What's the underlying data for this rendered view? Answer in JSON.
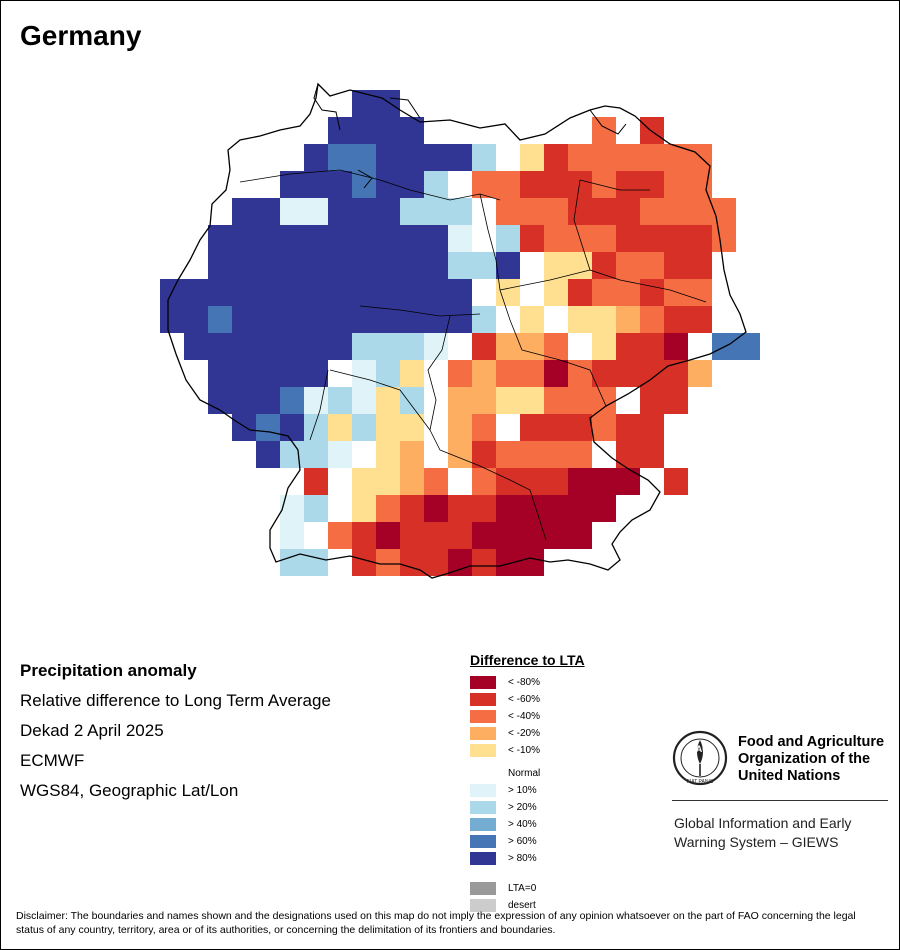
{
  "title": "Germany",
  "info": {
    "heading": "Precipitation anomaly",
    "line1": "Relative difference to Long Term Average",
    "line2": "Dekad 2 April 2025",
    "line3": "ECMWF",
    "line4": "WGS84, Geographic Lat/Lon"
  },
  "legend": {
    "title": "Difference to LTA",
    "items": [
      {
        "label": "< -80%",
        "color": "#a50026"
      },
      {
        "label": "< -60%",
        "color": "#d73027"
      },
      {
        "label": "< -40%",
        "color": "#f46d43"
      },
      {
        "label": "< -20%",
        "color": "#fdae61"
      },
      {
        "label": "< -10%",
        "color": "#fee090"
      },
      {
        "label": "Normal",
        "color": "#ffffff"
      },
      {
        "label": "> 10%",
        "color": "#e0f3f8"
      },
      {
        "label": "> 20%",
        "color": "#abd9e9"
      },
      {
        "label": "> 40%",
        "color": "#74add1"
      },
      {
        "label": "> 60%",
        "color": "#4575b4"
      },
      {
        "label": "> 80%",
        "color": "#313695"
      }
    ],
    "extra": [
      {
        "label": "LTA=0",
        "color": "#999999"
      },
      {
        "label": "desert",
        "color": "#cccccc"
      }
    ]
  },
  "fao": {
    "name_line1": "Food and Agriculture",
    "name_line2": "Organization of the",
    "name_line3": "United Nations",
    "logo_text": "FAO",
    "logo_motto": "FIAT PANIS",
    "system_line1": "Global Information and Early",
    "system_line2": "Warning System – GIEWS"
  },
  "disclaimer": "Disclaimer: The boundaries and names shown and the designations used on this map do not imply the expression of any opinion whatsoever on the part of FAO concerning the legal status of any country, territory, area or of its authorities, or concerning the delimitation of its frontiers and boundaries.",
  "map_grid": {
    "rows": [
      "........88...............",
      ".......8888.......3.2.....",
      "......89988887.52333333...",
      ".....8889887.3322232233...",
      "...8866888777.3332223333..",
      "..88888888886.7233322223..",
      "..8888888888778.5523322...",
      "8888888888888.5.5233233...",
      "88988888888887.5.554322...",
      ".88888887776.2443.5221.99..",
      "..88888.675.34331322224...",
      "..888967657.4455333.22....",
      "...89875755.43.222322.....",
      "....8776.54.423333.22.....",
      "......2.5543.3222111.2....",
      ".....67.53212211111.......",
      ".....6.32122211111........",
      ".....77.23221211..........",
      "......................."
    ]
  }
}
